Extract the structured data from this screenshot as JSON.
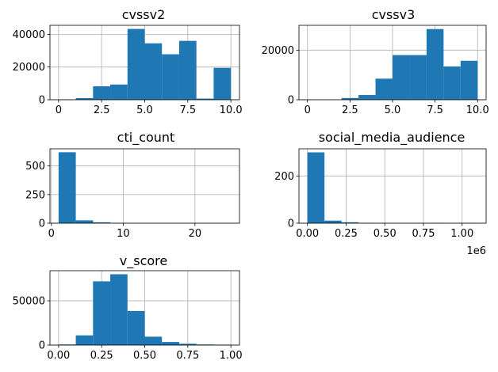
{
  "figure": {
    "background": "#ffffff",
    "bar_color": "#1f77b4"
  },
  "chart_data": [
    {
      "type": "bar",
      "title": "cvssv2",
      "grid": true,
      "bin_edges": [
        0,
        1,
        2,
        3,
        4,
        5,
        6,
        7,
        8,
        9,
        10
      ],
      "values": [
        200,
        1000,
        8200,
        9300,
        43300,
        34500,
        27800,
        36000,
        700,
        19500
      ],
      "xlim": [
        -0.5,
        10.5
      ],
      "ylim": [
        0,
        45500
      ],
      "xticks": [
        0,
        2.5,
        5,
        7.5,
        10
      ],
      "xtick_labels": [
        "0",
        "2.5",
        "5.0",
        "7.5",
        "10.0"
      ],
      "yticks": [
        0,
        20000,
        40000
      ],
      "ytick_labels": [
        "0",
        "20000",
        "40000"
      ]
    },
    {
      "type": "bar",
      "title": "cvssv3",
      "grid": true,
      "bin_edges": [
        0,
        1,
        2,
        3,
        4,
        5,
        6,
        7,
        8,
        9,
        10
      ],
      "values": [
        0,
        0,
        700,
        1900,
        8500,
        18000,
        18000,
        28500,
        13400,
        15700
      ],
      "xlim": [
        -0.5,
        10.5
      ],
      "ylim": [
        0,
        30000
      ],
      "xticks": [
        0,
        2.5,
        5,
        7.5,
        10
      ],
      "xtick_labels": [
        "0",
        "2.5",
        "5.0",
        "7.5",
        "10.0"
      ],
      "yticks": [
        0,
        20000
      ],
      "ytick_labels": [
        "0",
        "20000"
      ]
    },
    {
      "type": "bar",
      "title": "cti_count",
      "grid": true,
      "bin_edges": [
        1,
        3.4,
        5.8,
        8.2,
        10.6,
        13,
        15.4,
        17.8,
        20.2,
        22.6,
        25
      ],
      "values": [
        620,
        25,
        8,
        2,
        1,
        0,
        0,
        0,
        0,
        1
      ],
      "xlim": [
        -0.2,
        26.2
      ],
      "ylim": [
        0,
        650
      ],
      "xticks": [
        0,
        10,
        20
      ],
      "xtick_labels": [
        "0",
        "10",
        "20"
      ],
      "yticks": [
        0,
        250,
        500
      ],
      "ytick_labels": [
        "0",
        "250",
        "500"
      ]
    },
    {
      "type": "bar",
      "title": "social_media_audience",
      "grid": true,
      "bin_edges": [
        0,
        110000,
        220000,
        330000,
        440000,
        550000,
        660000,
        770000,
        880000,
        990000,
        1100000
      ],
      "values": [
        300,
        11,
        4,
        1,
        0,
        0,
        0,
        1,
        0,
        1
      ],
      "xlim": [
        -55000,
        1155000
      ],
      "ylim": [
        0,
        315
      ],
      "xticks": [
        0,
        250000,
        500000,
        750000,
        1000000
      ],
      "xtick_labels": [
        "0.00",
        "0.25",
        "0.50",
        "0.75",
        "1.00"
      ],
      "yticks": [
        0,
        200
      ],
      "ytick_labels": [
        "0",
        "200"
      ],
      "x_offset_label": "1e6"
    },
    {
      "type": "bar",
      "title": "v_score",
      "grid": true,
      "bin_edges": [
        0,
        0.1,
        0.2,
        0.3,
        0.4,
        0.5,
        0.6,
        0.7,
        0.8,
        0.9,
        1.0
      ],
      "values": [
        700,
        11000,
        72000,
        80000,
        38500,
        9500,
        3500,
        1500,
        700,
        500
      ],
      "xlim": [
        -0.05,
        1.05
      ],
      "ylim": [
        0,
        84000
      ],
      "xticks": [
        0,
        0.25,
        0.5,
        0.75,
        1.0
      ],
      "xtick_labels": [
        "0.00",
        "0.25",
        "0.50",
        "0.75",
        "1.00"
      ],
      "yticks": [
        0,
        50000
      ],
      "ytick_labels": [
        "0",
        "50000"
      ]
    }
  ]
}
